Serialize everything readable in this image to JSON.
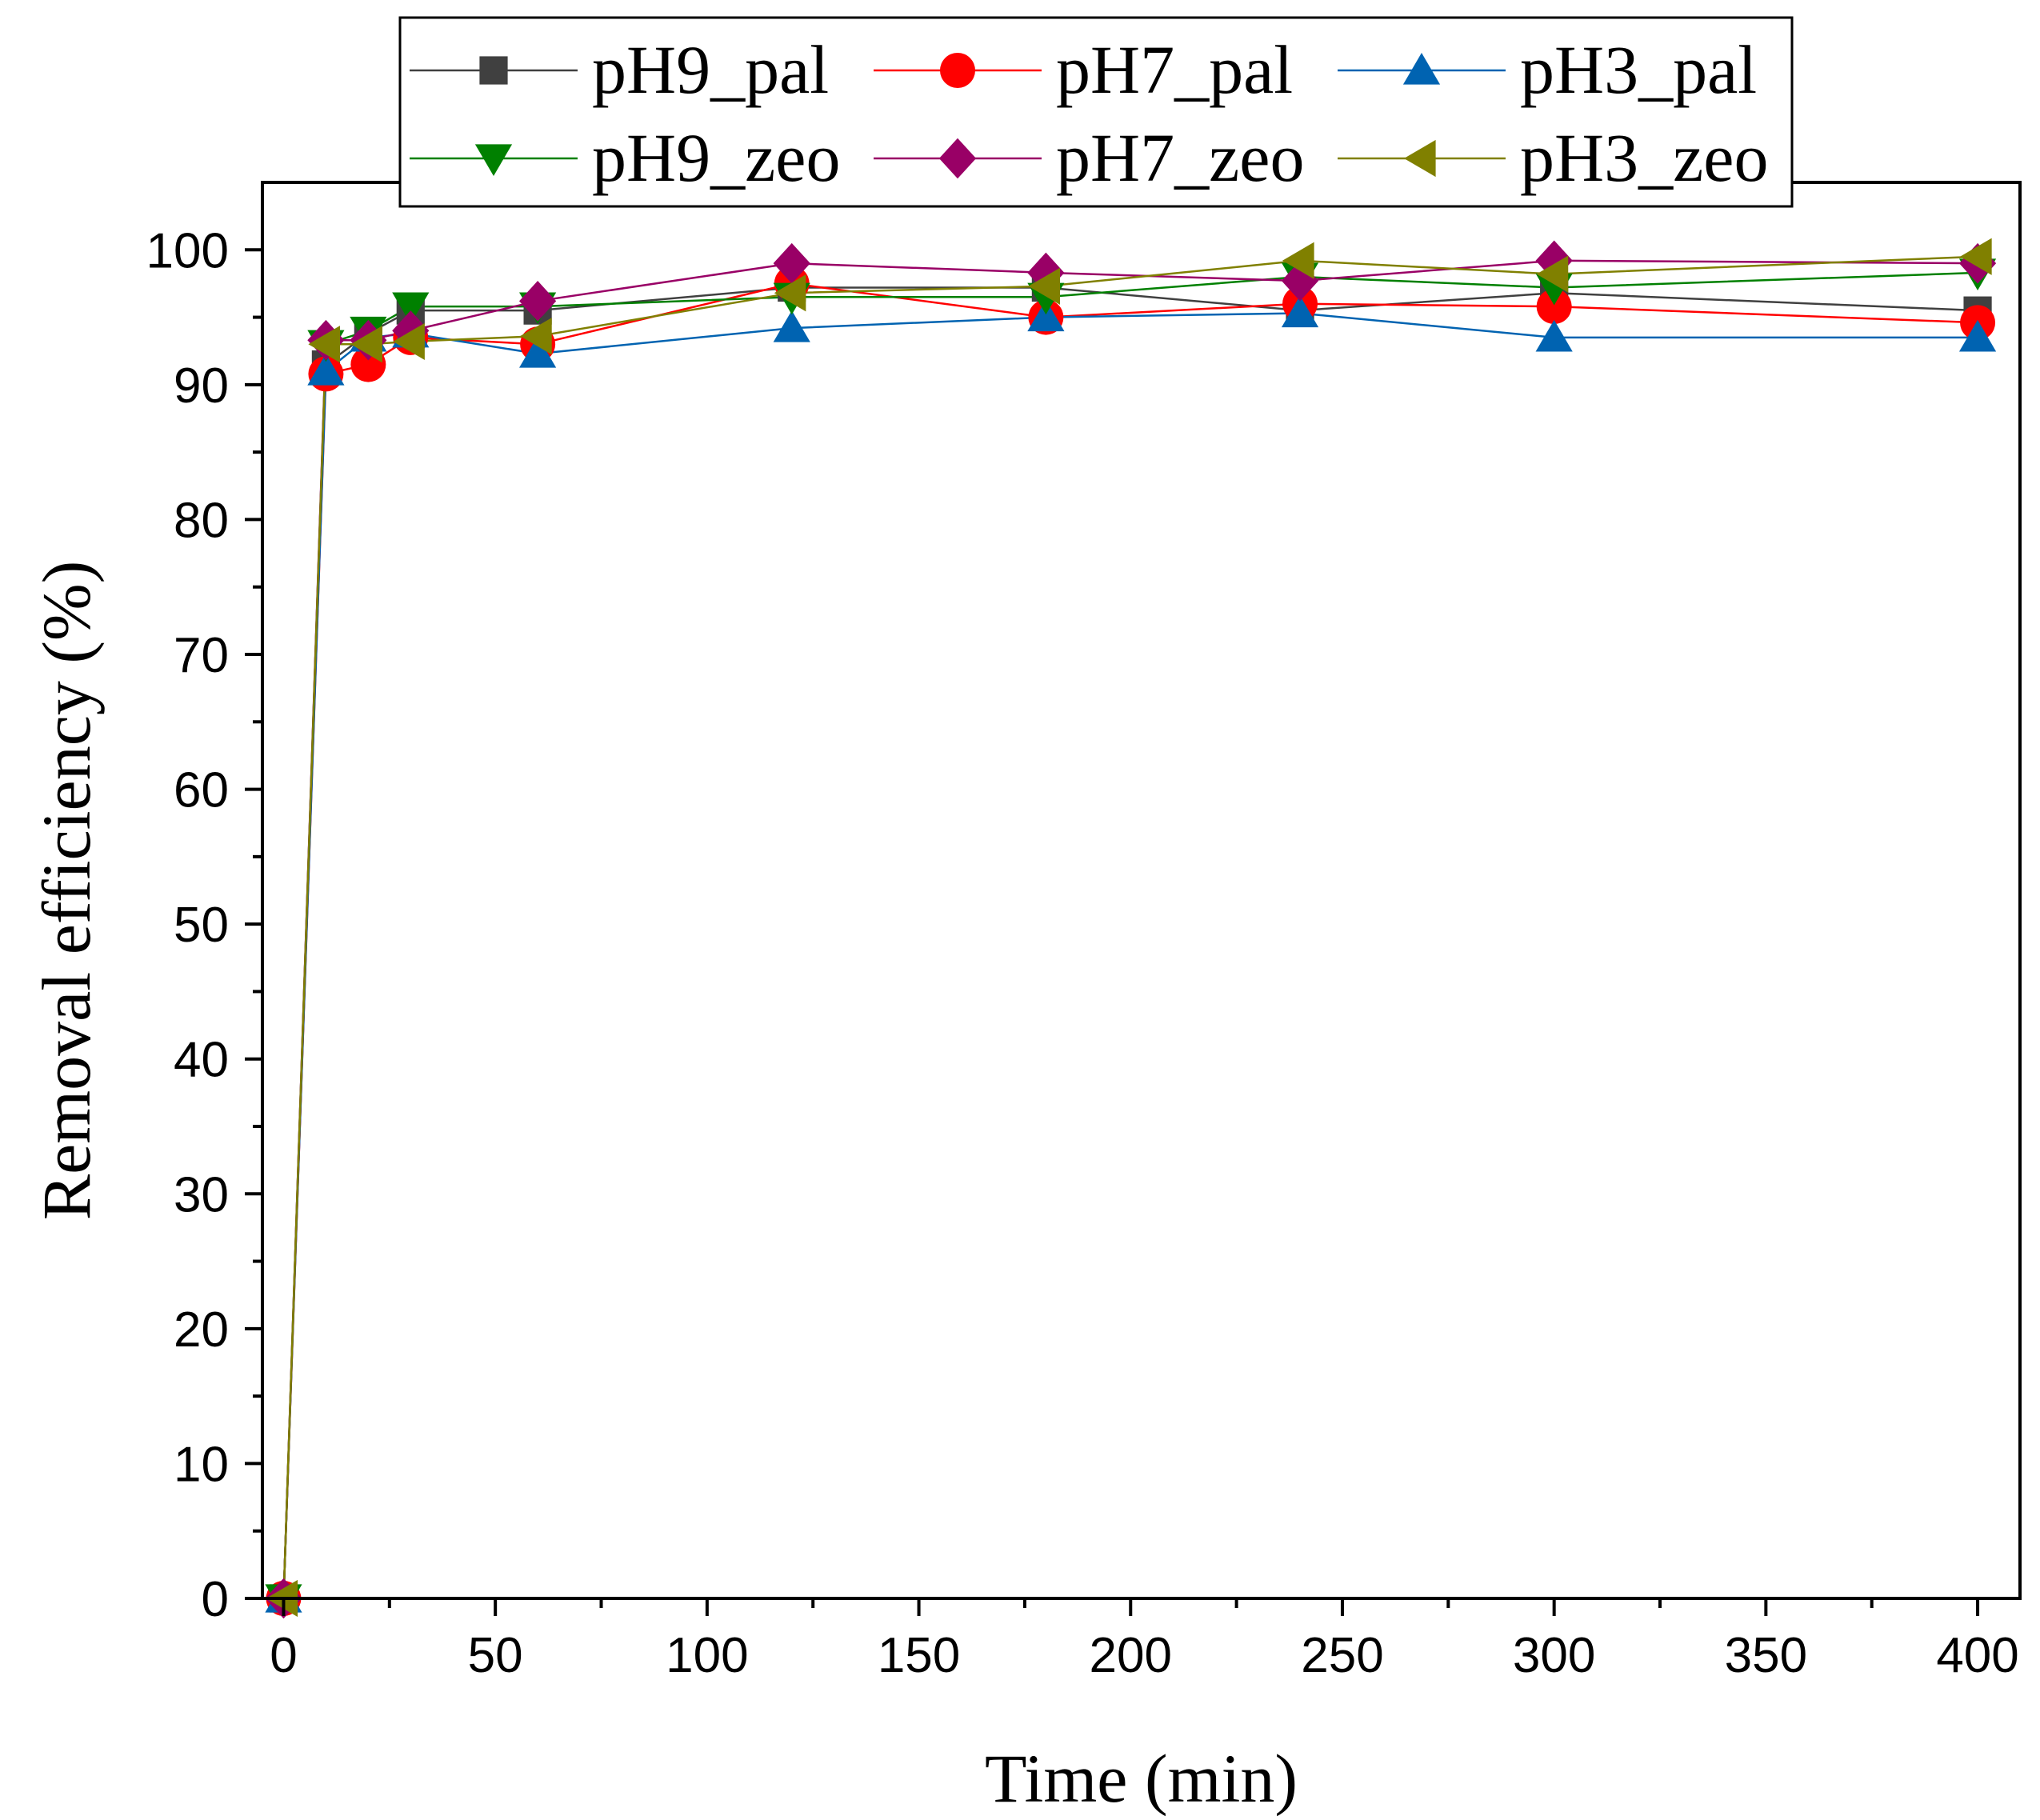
{
  "chart_data": {
    "type": "line",
    "title": "",
    "xlabel": "Time (min)",
    "ylabel": "Removal efficiency (%)",
    "xlim": [
      -5,
      410
    ],
    "ylim": [
      0,
      105
    ],
    "xticks": [
      0,
      50,
      100,
      150,
      200,
      250,
      300,
      350,
      400
    ],
    "yticks": [
      0,
      10,
      20,
      30,
      40,
      50,
      60,
      70,
      80,
      90,
      100
    ],
    "xtick_labels": [
      "0",
      "50",
      "100",
      "150",
      "200",
      "250",
      "300",
      "350",
      "400"
    ],
    "ytick_labels": [
      "0",
      "10",
      "20",
      "30",
      "40",
      "50",
      "60",
      "70",
      "80",
      "90",
      "100"
    ],
    "legend_position": "top-center",
    "x": [
      0,
      10,
      20,
      30,
      60,
      120,
      180,
      240,
      300,
      400
    ],
    "series": [
      {
        "name": "pH9_pal",
        "color": "#404040",
        "marker": "square",
        "values": [
          0,
          91.5,
          93.8,
          95.5,
          95.5,
          97.2,
          97.2,
          95.5,
          96.8,
          95.5
        ]
      },
      {
        "name": "pH7_pal",
        "color": "#ff0000",
        "marker": "circle",
        "values": [
          0,
          90.8,
          91.5,
          93.5,
          93.0,
          97.5,
          95.0,
          96.0,
          95.8,
          94.6
        ]
      },
      {
        "name": "pH3_pal",
        "color": "#0063b1",
        "marker": "triangle-up",
        "values": [
          0,
          91.0,
          93.5,
          93.8,
          92.3,
          94.2,
          95.0,
          95.3,
          93.5,
          93.5
        ]
      },
      {
        "name": "pH9_zeo",
        "color": "#008000",
        "marker": "triangle-down",
        "values": [
          0,
          93.0,
          94.0,
          95.8,
          95.8,
          96.5,
          96.5,
          98.0,
          97.2,
          98.3
        ]
      },
      {
        "name": "pH7_zeo",
        "color": "#990066",
        "marker": "diamond",
        "values": [
          0,
          93.3,
          93.3,
          94.0,
          96.2,
          99.0,
          98.3,
          97.7,
          99.2,
          99.0
        ]
      },
      {
        "name": "pH3_zeo",
        "color": "#808000",
        "marker": "triangle-left",
        "values": [
          0,
          93.0,
          93.0,
          93.2,
          93.6,
          96.8,
          97.3,
          99.2,
          98.2,
          99.5
        ]
      }
    ]
  }
}
